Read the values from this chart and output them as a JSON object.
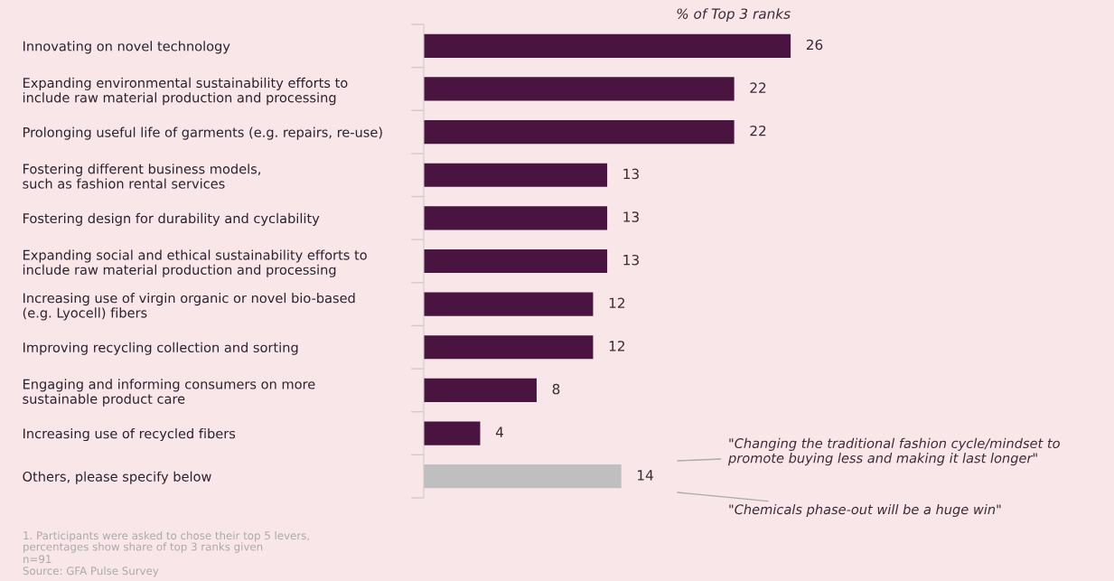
{
  "chart_data": {
    "type": "bar",
    "orientation": "horizontal",
    "xlabel": "% of Top 3 ranks",
    "categories": [
      "Innovating on novel technology",
      "Expanding environmental sustainability efforts to\ninclude raw material production and processing",
      "Prolonging useful life of garments (e.g. repairs, re-use)",
      "Fostering different business models,\nsuch as fashion rental services",
      "Fostering design for durability and cyclability",
      "Expanding social and ethical sustainability efforts to\ninclude raw material production and processing",
      "Increasing use of virgin organic or novel bio-based\n(e.g. Lyocell) fibers",
      "Improving recycling collection and sorting",
      "Engaging and informing consumers on more\nsustainable product care",
      "Increasing use of recycled fibers",
      "Others, please specify below"
    ],
    "values": [
      26,
      22,
      22,
      13,
      13,
      13,
      12,
      12,
      8,
      4,
      14
    ],
    "colors": [
      "#4a1441",
      "#4a1441",
      "#4a1441",
      "#4a1441",
      "#4a1441",
      "#4a1441",
      "#4a1441",
      "#4a1441",
      "#4a1441",
      "#4a1441",
      "#c0bfbf"
    ],
    "data_labels": true,
    "grid": false,
    "legend": false,
    "annotations": [
      "\"Changing the traditional fashion cycle/mindset to\npromote buying less and making it last longer\"",
      "\"Chemicals phase-out will be a huge win\"",
      "1. Participants were asked to chose their top 5 levers,\npercentages show share of top 3 ranks given",
      "n=91",
      "Source: GFA Pulse Survey"
    ]
  }
}
